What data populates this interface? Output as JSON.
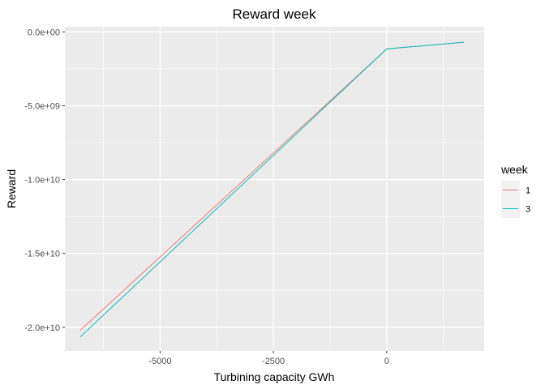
{
  "chart_data": {
    "type": "line",
    "title": "Reward week",
    "xlabel": "Turbining capacity GWh",
    "ylabel": "Reward",
    "xlim": [
      -7100,
      2150
    ],
    "ylim": [
      -21600000000,
      350000000
    ],
    "x_ticks": [
      {
        "value": -5000,
        "label": "-5000"
      },
      {
        "value": -2500,
        "label": "-2500"
      },
      {
        "value": 0,
        "label": "0"
      }
    ],
    "y_ticks": [
      {
        "value": 0,
        "label": "0.0e+00"
      },
      {
        "value": -5000000000,
        "label": "-5.0e+09"
      },
      {
        "value": -10000000000,
        "label": "-1.0e+10"
      },
      {
        "value": -15000000000,
        "label": "-1.5e+10"
      },
      {
        "value": -20000000000,
        "label": "-2.0e+10"
      }
    ],
    "grid": true,
    "legend": {
      "title": "week",
      "position": "right"
    },
    "series": [
      {
        "name": "1",
        "color": "#F8766D",
        "x": [
          -6760,
          0,
          1700
        ],
        "y": [
          -20200000000,
          -1150000000,
          -700000000
        ]
      },
      {
        "name": "3",
        "color": "#00BFC4",
        "x": [
          -6760,
          0,
          1700
        ],
        "y": [
          -20650000000,
          -1150000000,
          -700000000
        ]
      }
    ]
  }
}
